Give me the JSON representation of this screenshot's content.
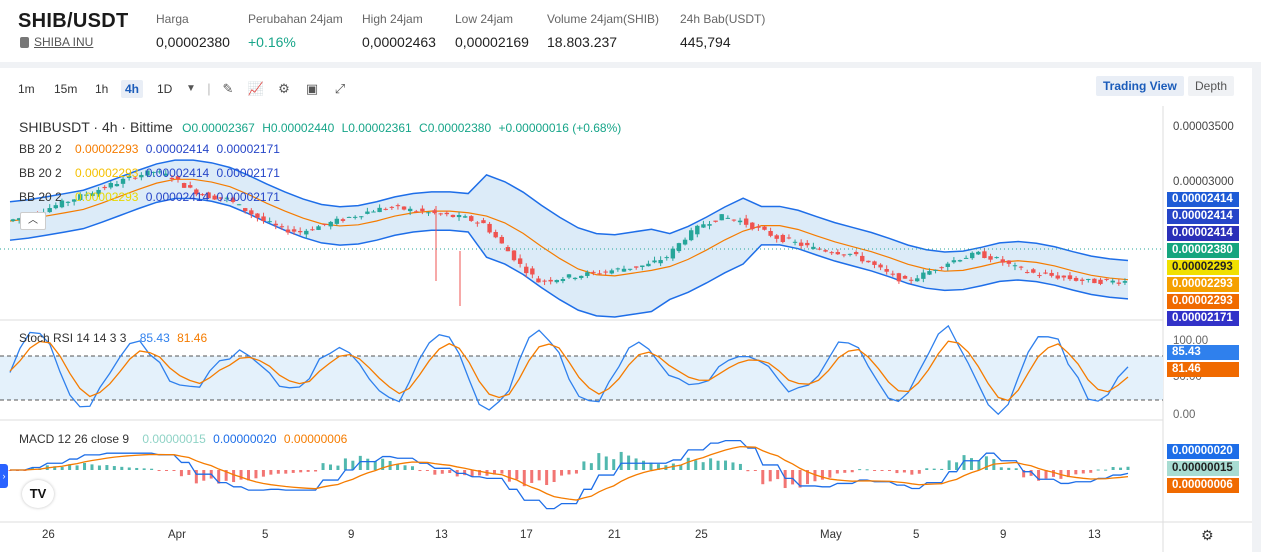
{
  "header": {
    "pair": "SHIB/USDT",
    "coin_name": "SHIBA INU",
    "stats": [
      {
        "label": "Harga",
        "value": "0,00002380",
        "color": "#222"
      },
      {
        "label": "Perubahan 24jam",
        "value": "+0.16%",
        "color": "#17a589"
      },
      {
        "label": "High 24jam",
        "value": "0,00002463",
        "color": "#222"
      },
      {
        "label": "Low 24jam",
        "value": "0,00002169",
        "color": "#222"
      },
      {
        "label": "Volume 24jam(SHIB)",
        "value": "18.803.237",
        "color": "#222"
      },
      {
        "label": "24h Bab(USDT)",
        "value": "445,794",
        "color": "#222"
      }
    ]
  },
  "toolbar": {
    "intervals": [
      "1m",
      "15m",
      "1h",
      "4h",
      "1D"
    ],
    "active_interval": "4h",
    "tools": [
      "draw-icon",
      "indicator-icon",
      "settings-icon",
      "save-icon",
      "fullscreen-icon"
    ],
    "views": {
      "trading_view": "Trading View",
      "depth": "Depth"
    }
  },
  "main_legend": {
    "symbol": "SHIBUSDT · 4h · Bittime",
    "o": "O0.00002367",
    "h": "H0.00002440",
    "l": "L0.00002361",
    "c": "C0.00002380",
    "chg": "+0.00000016 (+0.68%)"
  },
  "bb_legends": [
    {
      "name": "BB 20 2",
      "mid": "0.00002293",
      "up": "0.00002414",
      "low": "0.00002171",
      "mid_color": "#f57c00"
    },
    {
      "name": "BB 20 2",
      "mid": "0.00002293",
      "up": "0.00002414",
      "low": "0.00002171",
      "mid_color": "#f5c000"
    },
    {
      "name": "BB 20 2",
      "mid": "0.00002293",
      "up": "0.00002414",
      "low": "0.00002171",
      "mid_color": "#e8d800"
    }
  ],
  "stoch_legend": {
    "name": "Stoch RSI 14 14 3 3",
    "k": "85.43",
    "d": "81.46"
  },
  "macd_legend": {
    "name": "MACD 12 26 close 9",
    "hist": "0.00000015",
    "macd": "0.00000020",
    "signal": "0.00000006"
  },
  "price_axis": {
    "ticks": [
      "0.00003500",
      "0.00003000"
    ],
    "pills": [
      {
        "text": "0.00002414",
        "bg": "#1e5bd6"
      },
      {
        "text": "0.00002414",
        "bg": "#2545c8"
      },
      {
        "text": "0.00002414",
        "bg": "#2a2fb8"
      },
      {
        "text": "0.00002380",
        "bg": "#15a57e"
      },
      {
        "text": "0.00002293",
        "bg": "#f0e000",
        "fg": "#222"
      },
      {
        "text": "0.00002293",
        "bg": "#f5a000"
      },
      {
        "text": "0.00002293",
        "bg": "#f06a00"
      },
      {
        "text": "0.00002171",
        "bg": "#3232c8"
      }
    ]
  },
  "stoch_axis": {
    "ticks": [
      "100.00",
      "50.00",
      "0.00"
    ],
    "k_pill": "85.43",
    "d_pill": "81.46"
  },
  "macd_axis": {
    "pills": [
      {
        "text": "0.00000020",
        "bg": "#1e6ee8"
      },
      {
        "text": "0.00000015",
        "bg": "#a8dcd2",
        "fg": "#222"
      },
      {
        "text": "0.00000006",
        "bg": "#f06a00"
      }
    ]
  },
  "time_axis": [
    "26",
    "Apr",
    "5",
    "9",
    "13",
    "17",
    "21",
    "25",
    "May",
    "5",
    "9",
    "13"
  ],
  "logo": "TV",
  "colors": {
    "up": "#26a69a",
    "down": "#ef5350",
    "band": "#1e6ee8",
    "band_fill": "#dcebf8",
    "mid": "#f57c00",
    "stoch_k": "#2f80ed",
    "stoch_d": "#f57c00"
  },
  "chart_data": {
    "type": "candlestick",
    "interval": "4h",
    "price_close_path": [
      2.82e-05,
      2.85e-05,
      2.9e-05,
      2.95e-05,
      3e-05,
      3.05e-05,
      3.1e-05,
      3.15e-05,
      3.18e-05,
      3.14e-05,
      3.05e-05,
      3e-05,
      2.98e-05,
      2.9e-05,
      2.82e-05,
      2.76e-05,
      2.74e-05,
      2.78e-05,
      2.82e-05,
      2.86e-05,
      2.9e-05,
      2.92e-05,
      2.9e-05,
      2.88e-05,
      2.86e-05,
      2.84e-05,
      2.8e-05,
      2.65e-05,
      2.5e-05,
      2.38e-05,
      2.4e-05,
      2.42e-05,
      2.44e-05,
      2.46e-05,
      2.48e-05,
      2.5e-05,
      2.56e-05,
      2.7e-05,
      2.8e-05,
      2.85e-05,
      2.82e-05,
      2.76e-05,
      2.7e-05,
      2.66e-05,
      2.62e-05,
      2.6e-05,
      2.58e-05,
      2.52e-05,
      2.44e-05,
      2.38e-05,
      2.43e-05,
      2.5e-05,
      2.55e-05,
      2.58e-05,
      2.54e-05,
      2.48e-05,
      2.44e-05,
      2.42e-05,
      2.4e-05,
      2.38e-05,
      2.38e-05,
      2.38e-05
    ],
    "price_ylim": [
      2.171e-05,
      3.6e-05
    ]
  }
}
